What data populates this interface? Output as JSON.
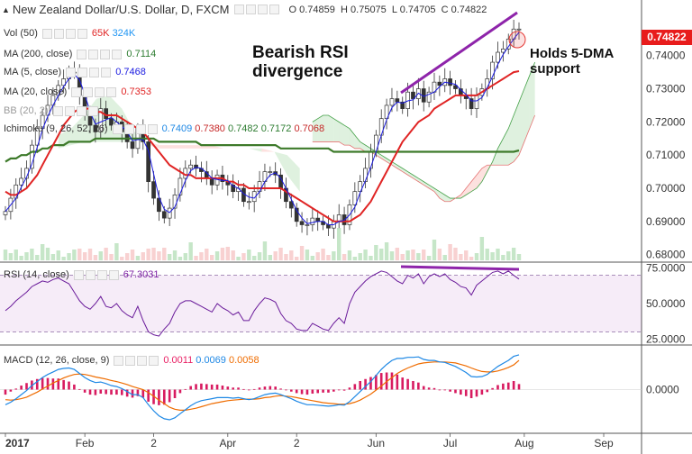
{
  "header": {
    "symbol_title": "New Zealand Dollar/U.S. Dollar, D, FXCM",
    "ohlc": [
      {
        "label": "O",
        "value": "0.74859"
      },
      {
        "label": "H",
        "value": "0.75075"
      },
      {
        "label": "L",
        "value": "0.74705"
      },
      {
        "label": "C",
        "value": "0.74822"
      }
    ]
  },
  "indicators": {
    "vol": {
      "label": "Vol (50)",
      "values": [
        "65K",
        "324K"
      ],
      "colors": [
        "#e02424",
        "#2196f3"
      ]
    },
    "ma200": {
      "label": "MA (200, close)",
      "value": "0.7114",
      "color": "#2e7d32"
    },
    "ma5": {
      "label": "MA (5, close)",
      "value": "0.7468",
      "color": "#1a1ae0"
    },
    "ma20": {
      "label": "MA (20, close)",
      "value": "0.7353",
      "color": "#e02424"
    },
    "bb": {
      "label": "BB (20, 2)"
    },
    "ichimoku": {
      "label": "Ichimoku (9, 26, 52, 26)",
      "values": [
        "0.7409",
        "0.7380",
        "0.7482",
        "0.7172",
        "0.7068"
      ],
      "colors": [
        "#1e88e5",
        "#c62828",
        "#2e7d32",
        "#2e7d32",
        "#c62828"
      ]
    },
    "rsi": {
      "label": "RSI (14, close)",
      "value": "67.3031",
      "color": "#7b1fa2"
    },
    "macd": {
      "label": "MACD (12, 26, close, 9)",
      "values": [
        "0.0011",
        "0.0069",
        "0.0058"
      ],
      "colors": [
        "#e91e63",
        "#1e88e5",
        "#ef6c00"
      ]
    }
  },
  "annotations": {
    "rsi_divergence": [
      "Bearish RSI",
      "divergence"
    ],
    "dma_support": [
      "Holds 5-DMA",
      "support"
    ]
  },
  "last_price": "0.74822",
  "chart_data": {
    "type": "candlestick",
    "x_ticks": [
      "2017",
      "Feb",
      "2",
      "Apr",
      "2",
      "Jun",
      "Jul",
      "Aug",
      "Sep"
    ],
    "price_axis": {
      "ticks": [
        "0.74000",
        "0.73000",
        "0.72000",
        "0.71000",
        "0.70000",
        "0.69000",
        "0.68000"
      ],
      "range": [
        0.678,
        0.7535
      ]
    },
    "rsi_axis": {
      "ticks": [
        "75.0000",
        "50.0000",
        "25.0000"
      ],
      "range": [
        22,
        78
      ],
      "levels": [
        70,
        30
      ]
    },
    "macd_axis": {
      "ticks": [
        "0.0000"
      ],
      "range": [
        -0.0085,
        0.0085
      ]
    },
    "closes": [
      0.693,
      0.697,
      0.701,
      0.703,
      0.706,
      0.713,
      0.718,
      0.722,
      0.725,
      0.728,
      0.731,
      0.733,
      0.735,
      0.735,
      0.728,
      0.722,
      0.719,
      0.717,
      0.724,
      0.721,
      0.719,
      0.72,
      0.717,
      0.714,
      0.712,
      0.718,
      0.714,
      0.702,
      0.697,
      0.693,
      0.691,
      0.694,
      0.698,
      0.703,
      0.706,
      0.707,
      0.706,
      0.705,
      0.703,
      0.701,
      0.704,
      0.702,
      0.701,
      0.699,
      0.7,
      0.696,
      0.696,
      0.699,
      0.702,
      0.705,
      0.705,
      0.704,
      0.7,
      0.696,
      0.694,
      0.69,
      0.689,
      0.689,
      0.691,
      0.69,
      0.689,
      0.688,
      0.69,
      0.692,
      0.689,
      0.695,
      0.699,
      0.702,
      0.706,
      0.711,
      0.716,
      0.721,
      0.725,
      0.727,
      0.726,
      0.724,
      0.729,
      0.727,
      0.73,
      0.726,
      0.729,
      0.732,
      0.731,
      0.733,
      0.731,
      0.73,
      0.728,
      0.727,
      0.724,
      0.728,
      0.73,
      0.733,
      0.738,
      0.741,
      0.742,
      0.745,
      0.748,
      0.748
    ],
    "ma20": [
      0.699,
      0.698,
      0.698,
      0.699,
      0.7,
      0.702,
      0.704,
      0.707,
      0.71,
      0.713,
      0.716,
      0.719,
      0.721,
      0.723,
      0.724,
      0.724,
      0.724,
      0.723,
      0.723,
      0.722,
      0.722,
      0.722,
      0.721,
      0.72,
      0.719,
      0.718,
      0.717,
      0.715,
      0.713,
      0.711,
      0.709,
      0.707,
      0.706,
      0.705,
      0.704,
      0.704,
      0.703,
      0.703,
      0.703,
      0.703,
      0.703,
      0.703,
      0.702,
      0.702,
      0.701,
      0.701,
      0.7,
      0.7,
      0.7,
      0.7,
      0.7,
      0.7,
      0.7,
      0.699,
      0.698,
      0.697,
      0.696,
      0.695,
      0.694,
      0.693,
      0.692,
      0.691,
      0.69,
      0.69,
      0.69,
      0.69,
      0.691,
      0.692,
      0.694,
      0.696,
      0.699,
      0.702,
      0.705,
      0.708,
      0.711,
      0.714,
      0.716,
      0.718,
      0.72,
      0.721,
      0.722,
      0.724,
      0.725,
      0.726,
      0.727,
      0.728,
      0.728,
      0.728,
      0.728,
      0.728,
      0.729,
      0.73,
      0.731,
      0.732,
      0.733,
      0.734,
      0.735,
      0.7353
    ],
    "ma200": [
      0.708,
      0.709,
      0.709,
      0.71,
      0.71,
      0.711,
      0.711,
      0.712,
      0.712,
      0.713,
      0.713,
      0.713,
      0.714,
      0.714,
      0.714,
      0.714,
      0.714,
      0.715,
      0.715,
      0.715,
      0.715,
      0.715,
      0.715,
      0.715,
      0.715,
      0.715,
      0.715,
      0.715,
      0.715,
      0.714,
      0.714,
      0.714,
      0.714,
      0.714,
      0.714,
      0.714,
      0.714,
      0.713,
      0.713,
      0.713,
      0.713,
      0.713,
      0.713,
      0.713,
      0.713,
      0.713,
      0.713,
      0.713,
      0.713,
      0.713,
      0.713,
      0.713,
      0.712,
      0.712,
      0.712,
      0.712,
      0.712,
      0.712,
      0.712,
      0.712,
      0.712,
      0.712,
      0.711,
      0.711,
      0.711,
      0.711,
      0.711,
      0.711,
      0.711,
      0.711,
      0.711,
      0.711,
      0.711,
      0.711,
      0.711,
      0.711,
      0.711,
      0.711,
      0.711,
      0.711,
      0.711,
      0.711,
      0.711,
      0.711,
      0.711,
      0.711,
      0.711,
      0.711,
      0.711,
      0.711,
      0.711,
      0.711,
      0.711,
      0.711,
      0.711,
      0.711,
      0.711,
      0.7114
    ],
    "rsi": [
      45,
      48,
      52,
      55,
      58,
      62,
      64,
      66,
      65,
      67,
      68,
      66,
      64,
      58,
      52,
      48,
      46,
      50,
      55,
      48,
      47,
      50,
      45,
      42,
      40,
      48,
      38,
      30,
      28,
      27,
      32,
      36,
      44,
      50,
      52,
      52,
      50,
      48,
      46,
      44,
      50,
      47,
      45,
      42,
      44,
      38,
      38,
      45,
      50,
      54,
      53,
      51,
      43,
      38,
      36,
      32,
      31,
      31,
      36,
      34,
      32,
      31,
      36,
      40,
      36,
      50,
      58,
      62,
      66,
      69,
      71,
      73,
      72,
      69,
      66,
      64,
      70,
      68,
      71,
      64,
      69,
      71,
      69,
      71,
      67,
      65,
      62,
      61,
      56,
      63,
      66,
      69,
      72,
      73,
      71,
      73,
      70,
      67.3
    ],
    "macd": [
      -0.003,
      -0.0025,
      -0.0018,
      -0.001,
      -0.0002,
      0.0008,
      0.0016,
      0.0024,
      0.003,
      0.0035,
      0.004,
      0.0042,
      0.0043,
      0.004,
      0.0032,
      0.0024,
      0.0018,
      0.0014,
      0.0015,
      0.0012,
      0.0008,
      0.0006,
      0.0002,
      -0.0004,
      -0.001,
      -0.001,
      -0.0016,
      -0.003,
      -0.0042,
      -0.0052,
      -0.0058,
      -0.006,
      -0.0056,
      -0.0048,
      -0.004,
      -0.0032,
      -0.0026,
      -0.0022,
      -0.002,
      -0.0018,
      -0.0016,
      -0.0016,
      -0.0016,
      -0.0017,
      -0.0016,
      -0.0018,
      -0.002,
      -0.0018,
      -0.0014,
      -0.001,
      -0.0008,
      -0.0007,
      -0.001,
      -0.0014,
      -0.0018,
      -0.0023,
      -0.0027,
      -0.003,
      -0.003,
      -0.0031,
      -0.0032,
      -0.0033,
      -0.0032,
      -0.003,
      -0.0031,
      -0.0024,
      -0.0014,
      -0.0004,
      0.0006,
      0.0016,
      0.0028,
      0.004,
      0.005,
      0.0058,
      0.0062,
      0.0062,
      0.0064,
      0.0064,
      0.0065,
      0.006,
      0.0058,
      0.0058,
      0.0055,
      0.0054,
      0.005,
      0.0046,
      0.004,
      0.0034,
      0.0026,
      0.0025,
      0.0026,
      0.003,
      0.0038,
      0.0046,
      0.0052,
      0.0058,
      0.0066,
      0.0069
    ],
    "macd_signal": [
      -0.002,
      -0.0021,
      -0.002,
      -0.0018,
      -0.0015,
      -0.001,
      -0.0005,
      0.0001,
      0.0007,
      0.0013,
      0.0018,
      0.0023,
      0.0027,
      0.003,
      0.0031,
      0.003,
      0.0028,
      0.0025,
      0.0023,
      0.0021,
      0.0018,
      0.0016,
      0.0013,
      0.001,
      0.0006,
      0.0003,
      0.0,
      -0.0006,
      -0.0013,
      -0.0021,
      -0.0028,
      -0.0035,
      -0.0039,
      -0.0041,
      -0.0041,
      -0.0039,
      -0.0037,
      -0.0034,
      -0.0031,
      -0.0028,
      -0.0026,
      -0.0024,
      -0.0022,
      -0.0021,
      -0.002,
      -0.0019,
      -0.0019,
      -0.0019,
      -0.0018,
      -0.0016,
      -0.0015,
      -0.0013,
      -0.0012,
      -0.0013,
      -0.0014,
      -0.0016,
      -0.0018,
      -0.002,
      -0.0022,
      -0.0024,
      -0.0026,
      -0.0027,
      -0.0028,
      -0.0029,
      -0.0029,
      -0.0028,
      -0.0025,
      -0.0021,
      -0.0015,
      -0.0009,
      -0.0001,
      0.0007,
      0.0016,
      0.0024,
      0.0032,
      0.0038,
      0.0043,
      0.0047,
      0.0051,
      0.0053,
      0.0054,
      0.0055,
      0.0055,
      0.0055,
      0.0054,
      0.0053,
      0.005,
      0.0047,
      0.0043,
      0.0039,
      0.0036,
      0.0035,
      0.0035,
      0.0037,
      0.004,
      0.0044,
      0.0049,
      0.0058
    ],
    "ichimoku_cloud": {
      "span_a": [
        0.72,
        0.721,
        0.722,
        0.722,
        0.721,
        0.72,
        0.719,
        0.718,
        0.716,
        0.714,
        0.713,
        0.712,
        0.711,
        0.71,
        0.709,
        0.708,
        0.707,
        0.706,
        0.705,
        0.704,
        0.703,
        0.702,
        0.701,
        0.7,
        0.699,
        0.698,
        0.697,
        0.697,
        0.697,
        0.698,
        0.699,
        0.7,
        0.702,
        0.705,
        0.708,
        0.712,
        0.715,
        0.718,
        0.722,
        0.726,
        0.73,
        0.734,
        0.738
      ],
      "span_b": [
        0.714,
        0.714,
        0.714,
        0.714,
        0.714,
        0.714,
        0.713,
        0.713,
        0.712,
        0.712,
        0.711,
        0.711,
        0.71,
        0.709,
        0.708,
        0.707,
        0.706,
        0.705,
        0.704,
        0.703,
        0.702,
        0.701,
        0.7,
        0.699,
        0.697,
        0.696,
        0.696,
        0.697,
        0.698,
        0.7,
        0.702,
        0.704,
        0.706,
        0.707,
        0.707,
        0.707,
        0.707,
        0.707,
        0.708,
        0.71,
        0.714,
        0.718,
        0.722
      ]
    }
  }
}
